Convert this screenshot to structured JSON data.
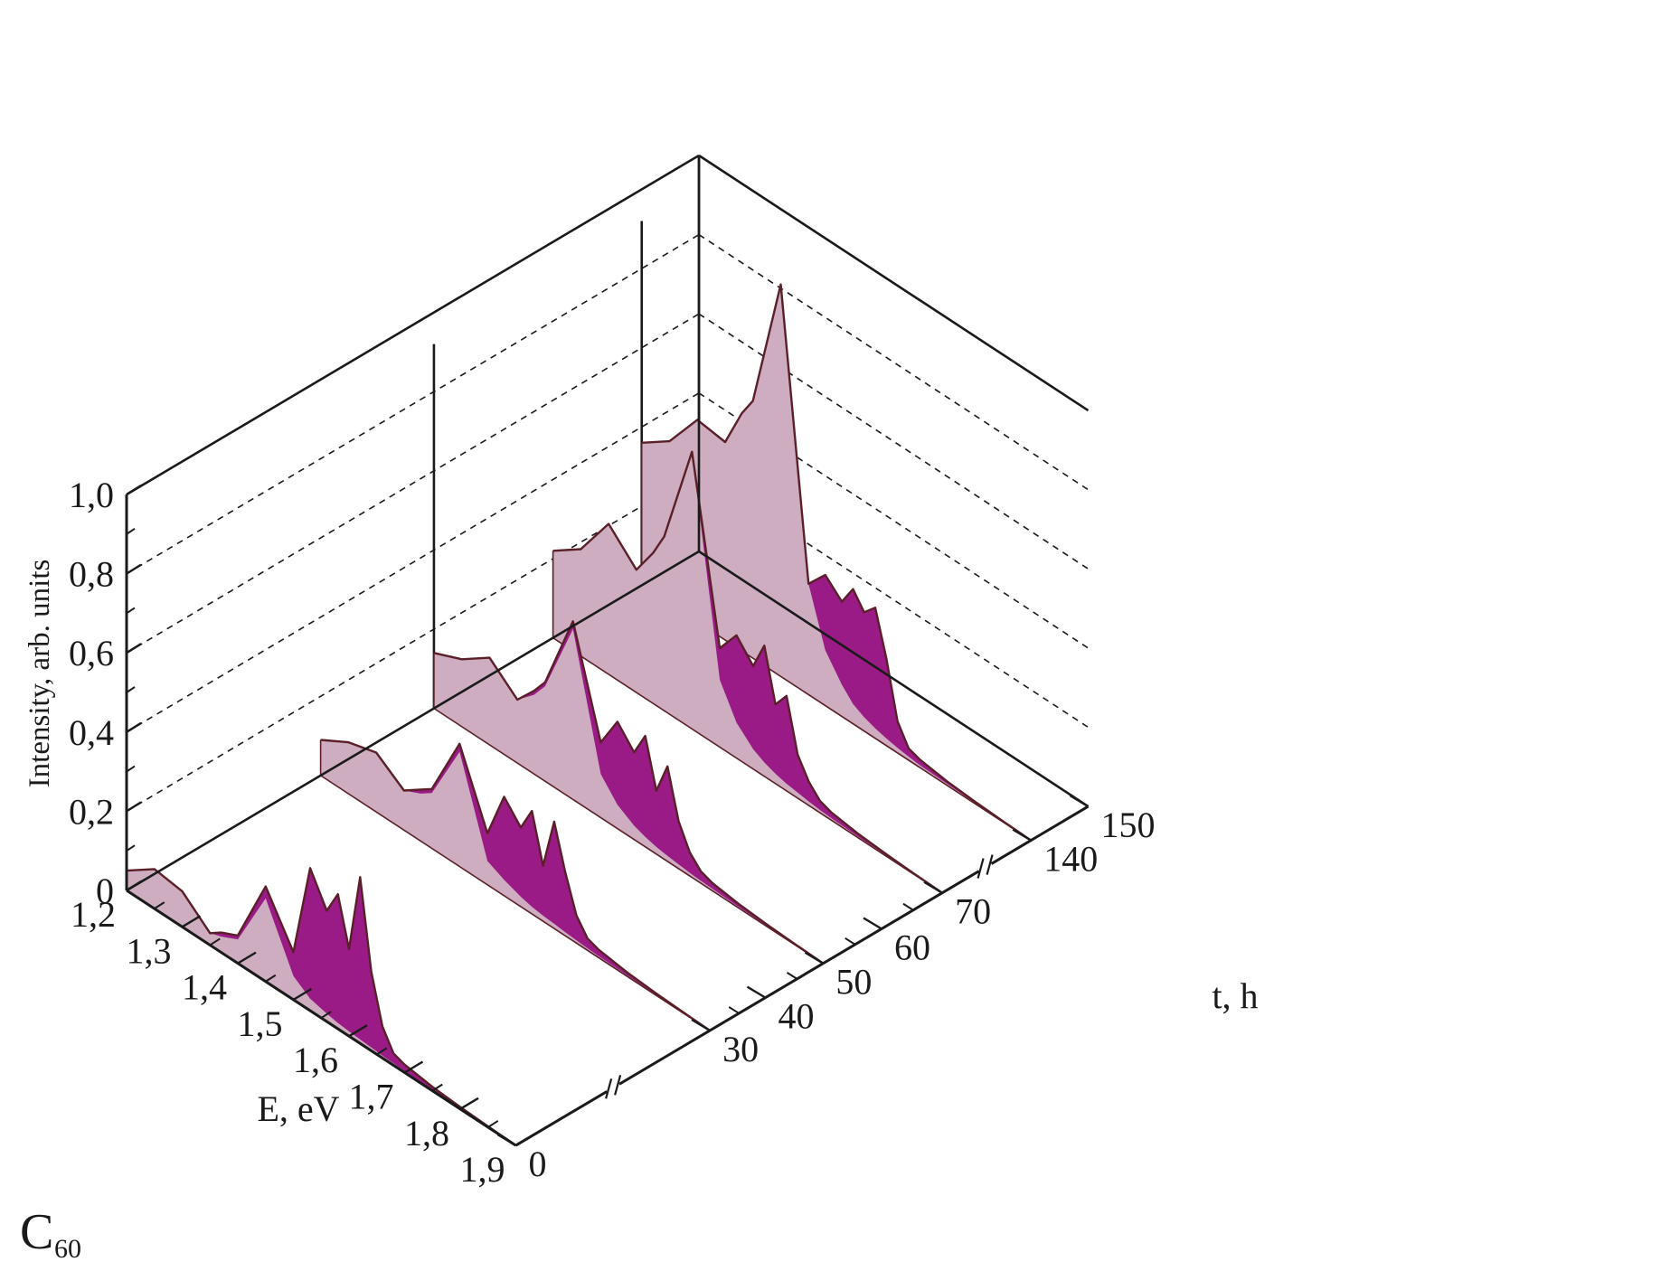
{
  "chart_data": {
    "type": "area",
    "projection": "3d-waterfall",
    "compound": {
      "base": "C",
      "subscript": "60"
    },
    "ylabel": "Intensity, arb. units",
    "xlabel": "E, eV",
    "zlabel": "t, h",
    "y_ticks": [
      "0",
      "0,2",
      "0,4",
      "0,6",
      "0,8",
      "1,0"
    ],
    "ylim": [
      0,
      1.0
    ],
    "x_ticks": [
      "1,2",
      "1,3",
      "1,4",
      "1,5",
      "1,6",
      "1,7",
      "1,8",
      "1,9"
    ],
    "xlim": [
      1.2,
      1.9
    ],
    "z_ticks": [
      "0",
      "30",
      "40",
      "50",
      "60",
      "70",
      "140",
      "150"
    ],
    "z_axis_breaks": [
      "0-30",
      "70-140"
    ],
    "grid": "dashed horizontal lines on back wall",
    "colors": {
      "envelope_fill": "#cdadbf",
      "fine_structure_fill": "#9b1b86",
      "outline": "#5a1f28",
      "axes": "#1a1a1a"
    },
    "series": [
      {
        "t": 0,
        "x": [
          1.2,
          1.25,
          1.3,
          1.35,
          1.37,
          1.4,
          1.45,
          1.5,
          1.53,
          1.56,
          1.58,
          1.6,
          1.62,
          1.64,
          1.66,
          1.68,
          1.7,
          1.75,
          1.8,
          1.85,
          1.9
        ],
        "envelope": [
          0.05,
          0.1,
          0.09,
          0.03,
          0.04,
          0.06,
          0.21,
          0.06,
          0.03,
          0.02,
          0.015,
          0.012,
          0.01,
          0.008,
          0.006,
          0.005,
          0.004,
          0.003,
          0.002,
          0.001,
          0.0
        ],
        "fine_structure": [
          0.05,
          0.1,
          0.09,
          0.03,
          0.05,
          0.07,
          0.24,
          0.12,
          0.36,
          0.28,
          0.34,
          0.22,
          0.42,
          0.2,
          0.08,
          0.03,
          0.02,
          0.01,
          0.005,
          0.002,
          0.0
        ]
      },
      {
        "t": 30,
        "x": [
          1.2,
          1.25,
          1.3,
          1.35,
          1.38,
          1.4,
          1.45,
          1.5,
          1.53,
          1.56,
          1.58,
          1.6,
          1.62,
          1.64,
          1.66,
          1.68,
          1.7,
          1.75,
          1.8,
          1.85,
          1.9
        ],
        "envelope": [
          0.09,
          0.13,
          0.15,
          0.1,
          0.12,
          0.14,
          0.29,
          0.06,
          0.04,
          0.025,
          0.018,
          0.014,
          0.012,
          0.009,
          0.007,
          0.005,
          0.004,
          0.003,
          0.002,
          0.001,
          0.0
        ],
        "fine_structure": [
          0.09,
          0.13,
          0.15,
          0.1,
          0.13,
          0.15,
          0.31,
          0.13,
          0.25,
          0.2,
          0.26,
          0.14,
          0.27,
          0.16,
          0.07,
          0.03,
          0.02,
          0.01,
          0.005,
          0.002,
          0.0
        ]
      },
      {
        "t": 50,
        "x": [
          1.2,
          1.25,
          1.3,
          1.35,
          1.38,
          1.4,
          1.45,
          1.5,
          1.53,
          1.56,
          1.58,
          1.6,
          1.62,
          1.64,
          1.66,
          1.68,
          1.7,
          1.75,
          1.8,
          1.85,
          1.9
        ],
        "envelope": [
          0.14,
          0.17,
          0.22,
          0.16,
          0.2,
          0.24,
          0.43,
          0.11,
          0.06,
          0.035,
          0.025,
          0.018,
          0.014,
          0.011,
          0.008,
          0.006,
          0.005,
          0.003,
          0.002,
          0.001,
          0.0
        ],
        "fine_structure": [
          0.14,
          0.17,
          0.22,
          0.16,
          0.21,
          0.25,
          0.45,
          0.19,
          0.27,
          0.22,
          0.28,
          0.16,
          0.24,
          0.12,
          0.06,
          0.03,
          0.02,
          0.01,
          0.005,
          0.002,
          0.0
        ]
      },
      {
        "t": 70,
        "x": [
          1.2,
          1.25,
          1.3,
          1.35,
          1.38,
          1.4,
          1.45,
          1.5,
          1.53,
          1.56,
          1.58,
          1.6,
          1.62,
          1.64,
          1.66,
          1.68,
          1.7,
          1.75,
          1.8,
          1.85,
          1.9
        ],
        "envelope": [
          0.22,
          0.27,
          0.38,
          0.31,
          0.38,
          0.44,
          0.7,
          0.17,
          0.09,
          0.05,
          0.035,
          0.025,
          0.018,
          0.014,
          0.01,
          0.007,
          0.005,
          0.003,
          0.002,
          0.001,
          0.0
        ],
        "fine_structure": [
          0.22,
          0.27,
          0.38,
          0.31,
          0.38,
          0.44,
          0.7,
          0.25,
          0.31,
          0.26,
          0.33,
          0.2,
          0.24,
          0.11,
          0.06,
          0.03,
          0.02,
          0.01,
          0.005,
          0.002,
          0.0
        ]
      },
      {
        "t": 140,
        "x": [
          1.2,
          1.25,
          1.3,
          1.35,
          1.38,
          1.4,
          1.45,
          1.5,
          1.53,
          1.56,
          1.58,
          1.6,
          1.62,
          1.64,
          1.66,
          1.68,
          1.7,
          1.75,
          1.8,
          1.85,
          1.9
        ],
        "envelope": [
          0.36,
          0.41,
          0.51,
          0.5,
          0.6,
          0.65,
          0.99,
          0.28,
          0.14,
          0.08,
          0.05,
          0.035,
          0.025,
          0.018,
          0.013,
          0.009,
          0.006,
          0.004,
          0.002,
          0.001,
          0.0
        ],
        "fine_structure": [
          0.36,
          0.41,
          0.51,
          0.5,
          0.6,
          0.65,
          0.99,
          0.28,
          0.33,
          0.29,
          0.34,
          0.3,
          0.33,
          0.22,
          0.08,
          0.03,
          0.02,
          0.01,
          0.005,
          0.002,
          0.0
        ]
      }
    ]
  }
}
